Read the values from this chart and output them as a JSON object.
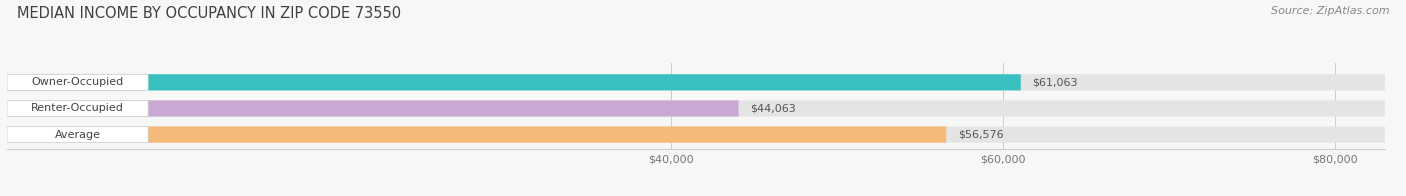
{
  "title": "MEDIAN INCOME BY OCCUPANCY IN ZIP CODE 73550",
  "source": "Source: ZipAtlas.com",
  "categories": [
    "Owner-Occupied",
    "Renter-Occupied",
    "Average"
  ],
  "values": [
    61063,
    44063,
    56576
  ],
  "bar_colors": [
    "#38bfbf",
    "#c9a8d4",
    "#f5b97a"
  ],
  "bar_labels": [
    "$61,063",
    "$44,063",
    "$56,576"
  ],
  "xlim": [
    0,
    83000
  ],
  "xticks": [
    40000,
    60000,
    80000
  ],
  "bg_color": "#f7f7f7",
  "bar_bg_color": "#e4e4e4",
  "title_fontsize": 10.5,
  "source_fontsize": 8,
  "label_fontsize": 8,
  "tick_fontsize": 8,
  "cat_label_bg": "#ffffff"
}
